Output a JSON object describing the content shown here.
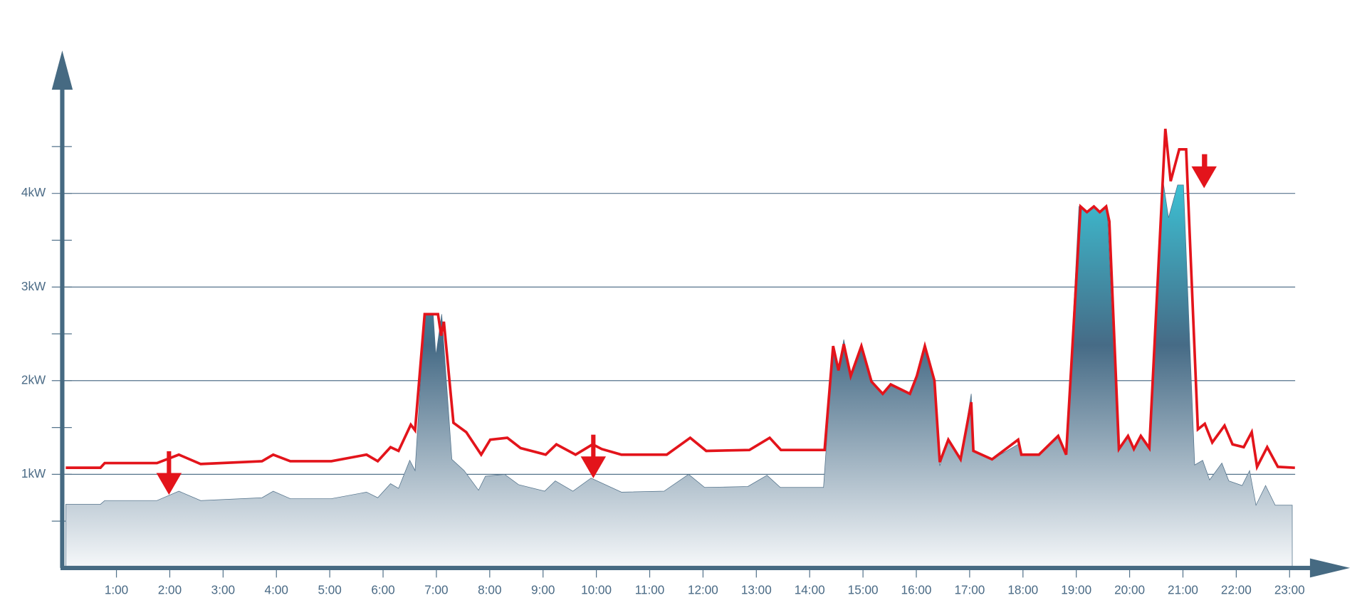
{
  "chart_data": {
    "type": "line",
    "xlim": [
      0,
      23.7
    ],
    "ylim": [
      0,
      5.3
    ],
    "xticks": [
      {
        "value": 1,
        "label": "1:00"
      },
      {
        "value": 2,
        "label": "2:00"
      },
      {
        "value": 3,
        "label": "3:00"
      },
      {
        "value": 4,
        "label": "4:00"
      },
      {
        "value": 5,
        "label": "5:00"
      },
      {
        "value": 6,
        "label": "6:00"
      },
      {
        "value": 7,
        "label": "7:00"
      },
      {
        "value": 8,
        "label": "8:00"
      },
      {
        "value": 9,
        "label": "9:00"
      },
      {
        "value": 10,
        "label": "10:00"
      },
      {
        "value": 11,
        "label": "11:00"
      },
      {
        "value": 12,
        "label": "12:00"
      },
      {
        "value": 13,
        "label": "13:00"
      },
      {
        "value": 14,
        "label": "14:00"
      },
      {
        "value": 15,
        "label": "15:00"
      },
      {
        "value": 16,
        "label": "16:00"
      },
      {
        "value": 17,
        "label": "17:00"
      },
      {
        "value": 18,
        "label": "18:00"
      },
      {
        "value": 19,
        "label": "19:00"
      },
      {
        "value": 20,
        "label": "20:00"
      },
      {
        "value": 21,
        "label": "21:00"
      },
      {
        "value": 22,
        "label": "22:00"
      },
      {
        "value": 23,
        "label": "23:00"
      }
    ],
    "yticks": [
      {
        "value": 1,
        "label": "1kW"
      },
      {
        "value": 2,
        "label": "2kW"
      },
      {
        "value": 3,
        "label": "3kW"
      },
      {
        "value": 4,
        "label": "4kW"
      }
    ],
    "yminorticks": [
      0.5,
      1.5,
      2.5,
      3.5,
      4.5
    ],
    "grid": true,
    "series": [
      {
        "kind": "area",
        "gradient": [
          "#3cc0d3",
          "#466b86",
          "#f6f8fa"
        ],
        "x": [
          0.05,
          0.7,
          0.78,
          1.76,
          2.17,
          2.58,
          3.73,
          3.94,
          4.26,
          5.03,
          5.69,
          5.9,
          6.14,
          6.29,
          6.5,
          6.6,
          6.78,
          6.94,
          6.99,
          7.1,
          7.29,
          7.52,
          7.79,
          7.92,
          8.28,
          8.54,
          9.03,
          9.23,
          9.56,
          9.9,
          10.47,
          11.27,
          11.73,
          12.03,
          12.84,
          13.2,
          13.45,
          14.26,
          14.44,
          14.54,
          14.64,
          14.77,
          14.97,
          15.16,
          15.37,
          15.52,
          15.88,
          16.01,
          16.16,
          16.34,
          16.44,
          16.6,
          16.83,
          17.03,
          17.07,
          17.42,
          17.91,
          17.97,
          18.3,
          18.66,
          18.81,
          19.05,
          19.2,
          19.33,
          19.44,
          19.56,
          19.59,
          19.78,
          19.97,
          20.08,
          20.21,
          20.37,
          20.62,
          20.73,
          20.9,
          21.01,
          21.22,
          21.37,
          21.5,
          21.73,
          21.86,
          22.11,
          22.25,
          22.37,
          22.55,
          22.73,
          23.05
        ],
        "values": [
          0.68,
          0.68,
          0.72,
          0.72,
          0.82,
          0.72,
          0.75,
          0.82,
          0.74,
          0.74,
          0.81,
          0.75,
          0.9,
          0.85,
          1.15,
          1.04,
          2.71,
          2.71,
          2.27,
          2.71,
          1.16,
          1.04,
          0.83,
          0.98,
          1.0,
          0.89,
          0.82,
          0.93,
          0.82,
          0.96,
          0.81,
          0.82,
          1.0,
          0.86,
          0.87,
          0.99,
          0.86,
          0.86,
          2.37,
          2.11,
          2.44,
          2.05,
          2.37,
          1.99,
          1.86,
          1.96,
          1.86,
          2.05,
          2.37,
          2.0,
          1.09,
          1.37,
          1.16,
          1.86,
          1.25,
          1.16,
          1.32,
          1.21,
          1.21,
          1.41,
          1.21,
          3.86,
          3.8,
          3.86,
          3.8,
          3.86,
          3.7,
          1.26,
          1.41,
          1.27,
          1.41,
          1.28,
          4.16,
          3.74,
          4.09,
          4.09,
          1.1,
          1.15,
          0.94,
          1.12,
          0.93,
          0.88,
          1.04,
          0.67,
          0.88,
          0.67,
          0.67
        ]
      },
      {
        "kind": "line",
        "color": "#e3141b",
        "x": [
          0.05,
          0.7,
          0.78,
          1.76,
          2.17,
          2.58,
          3.73,
          3.94,
          4.26,
          5.03,
          5.69,
          5.9,
          6.14,
          6.29,
          6.52,
          6.6,
          6.78,
          7.03,
          7.09,
          7.14,
          7.32,
          7.56,
          7.84,
          8.01,
          8.33,
          8.58,
          9.05,
          9.25,
          9.61,
          9.93,
          10.1,
          10.47,
          11.32,
          11.76,
          12.06,
          12.87,
          13.25,
          13.46,
          14.28,
          14.44,
          14.54,
          14.64,
          14.77,
          14.97,
          15.16,
          15.37,
          15.52,
          15.88,
          16.01,
          16.16,
          16.34,
          16.44,
          16.6,
          16.83,
          17.03,
          17.07,
          17.42,
          17.91,
          17.97,
          18.3,
          18.66,
          18.81,
          19.08,
          19.2,
          19.33,
          19.44,
          19.56,
          19.62,
          19.8,
          19.97,
          20.08,
          20.21,
          20.37,
          20.67,
          20.77,
          20.93,
          21.06,
          21.28,
          21.41,
          21.55,
          21.78,
          21.93,
          22.14,
          22.29,
          22.39,
          22.58,
          22.78,
          23.1
        ],
        "values": [
          1.07,
          1.07,
          1.12,
          1.12,
          1.21,
          1.11,
          1.14,
          1.21,
          1.14,
          1.14,
          1.21,
          1.14,
          1.29,
          1.25,
          1.53,
          1.47,
          2.71,
          2.71,
          2.48,
          2.63,
          1.55,
          1.45,
          1.21,
          1.37,
          1.39,
          1.28,
          1.21,
          1.32,
          1.21,
          1.32,
          1.27,
          1.21,
          1.21,
          1.39,
          1.25,
          1.26,
          1.39,
          1.26,
          1.26,
          2.37,
          2.11,
          2.39,
          2.05,
          2.37,
          1.99,
          1.86,
          1.96,
          1.86,
          2.05,
          2.37,
          2.0,
          1.13,
          1.37,
          1.16,
          1.77,
          1.25,
          1.16,
          1.37,
          1.21,
          1.21,
          1.41,
          1.21,
          3.86,
          3.8,
          3.86,
          3.8,
          3.86,
          3.7,
          1.27,
          1.41,
          1.27,
          1.41,
          1.28,
          4.69,
          4.13,
          4.47,
          4.47,
          1.48,
          1.54,
          1.34,
          1.52,
          1.32,
          1.29,
          1.45,
          1.08,
          1.29,
          1.08,
          1.07
        ]
      }
    ]
  }
}
